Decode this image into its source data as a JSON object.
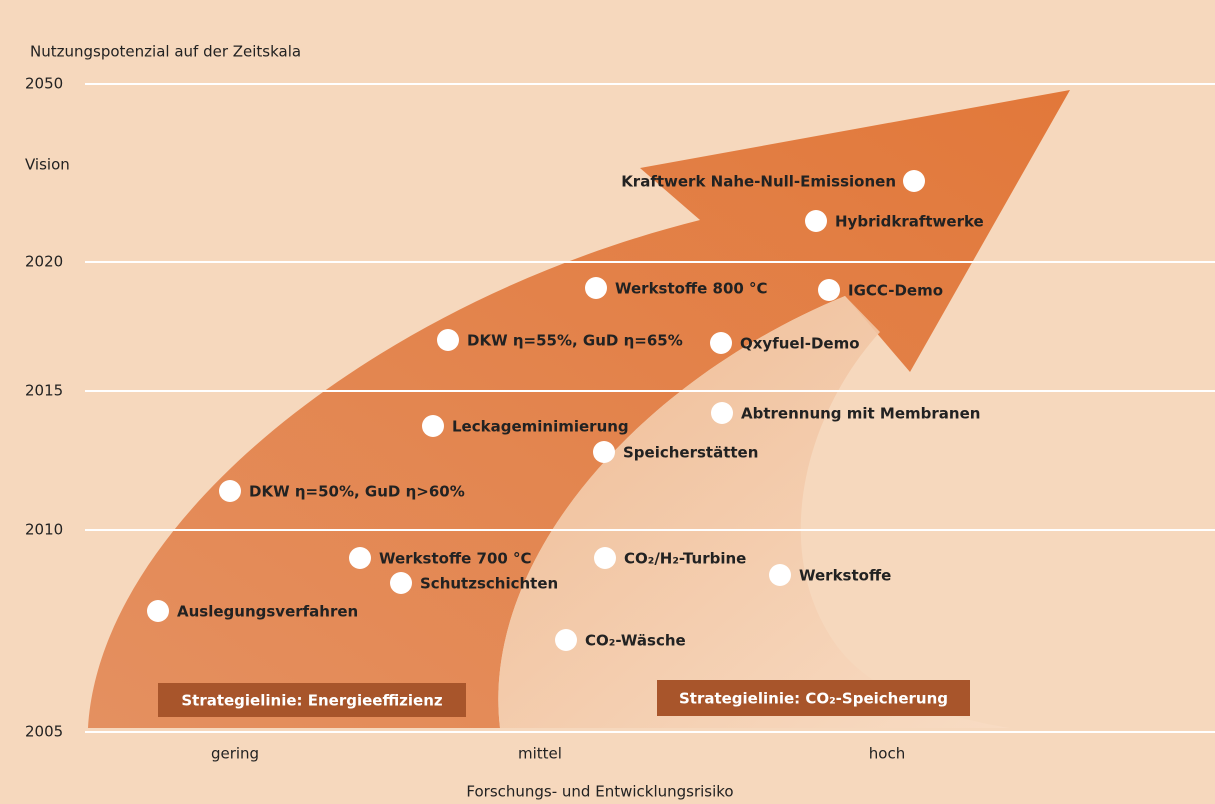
{
  "y_axis_title": "Nutzungspotenzial auf der Zeitskala",
  "y_labels": [
    "2050",
    "Vision",
    "2020",
    "2015",
    "2010",
    "2005"
  ],
  "x_labels": [
    "gering",
    "mittel",
    "hoch"
  ],
  "x_axis_title": "Forschungs- und Entwicklungsrisiko",
  "items": [
    "Kraftwerk Nahe-Null-Emissionen",
    "Hybridkraftwerke",
    "Werkstoffe 800 °C",
    "IGCC-Demo",
    "DKW η=55%, GuD η=65%",
    "Qxyfuel-Demo",
    "Abtrennung mit Membranen",
    "Leckageminimierung",
    "Speicherstätten",
    "DKW η=50%, GuD η>60%",
    "Werkstoffe 700 °C",
    "CO₂/H₂-Turbine",
    "Schutzschichten",
    "Werkstoffe",
    "Auslegungsverfahren",
    "CO₂-Wäsche"
  ],
  "strategies": [
    "Strategielinie: Energieeffizienz",
    "Strategielinie: CO₂-Speicherung"
  ]
}
